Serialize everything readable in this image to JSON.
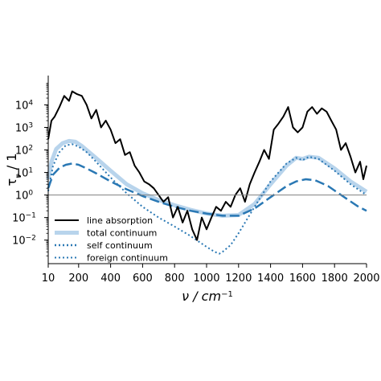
{
  "chart_data": {
    "type": "line",
    "title": "",
    "xlabel": "ν / cm",
    "xlabel_sup": "−1",
    "ylabel": "τ",
    "ylabel_sub": "ν",
    "ylabel_suffix": " / 1",
    "y_scale": "log",
    "xlim": [
      10,
      2000
    ],
    "ylim": [
      0.0009,
      200000
    ],
    "x_ticks": [
      10,
      200,
      400,
      600,
      800,
      1000,
      1200,
      1400,
      1600,
      1800,
      2000
    ],
    "y_ticks": [
      {
        "value": 0.01,
        "label": "10",
        "exp": "−2"
      },
      {
        "value": 0.1,
        "label": "10",
        "exp": "−1"
      },
      {
        "value": 1,
        "label": "10",
        "exp": "0"
      },
      {
        "value": 10,
        "label": "10",
        "exp": "1"
      },
      {
        "value": 100,
        "label": "10",
        "exp": "2"
      },
      {
        "value": 1000,
        "label": "10",
        "exp": "3"
      },
      {
        "value": 10000,
        "label": "10",
        "exp": "4"
      }
    ],
    "reference_line": {
      "y": 1,
      "color": "#808080"
    },
    "legend_position": "lower-left",
    "grid": false,
    "series": [
      {
        "name": "line absorption",
        "color": "#000000",
        "style": "solid",
        "x": [
          10,
          30,
          50,
          80,
          110,
          140,
          160,
          190,
          220,
          250,
          280,
          310,
          340,
          370,
          400,
          430,
          460,
          490,
          520,
          550,
          580,
          610,
          640,
          670,
          700,
          730,
          760,
          790,
          820,
          850,
          880,
          910,
          940,
          970,
          1000,
          1030,
          1060,
          1090,
          1120,
          1150,
          1180,
          1210,
          1240,
          1270,
          1300,
          1330,
          1360,
          1390,
          1420,
          1450,
          1480,
          1510,
          1540,
          1570,
          1600,
          1630,
          1660,
          1690,
          1720,
          1750,
          1780,
          1810,
          1840,
          1870,
          1900,
          1930,
          1960,
          1980,
          2000
        ],
        "y": [
          300,
          2000,
          3000,
          8000,
          25000,
          15000,
          40000,
          30000,
          25000,
          10000,
          2500,
          6000,
          1000,
          2000,
          800,
          200,
          300,
          60,
          80,
          20,
          10,
          4,
          3,
          2,
          1,
          0.5,
          0.8,
          0.1,
          0.3,
          0.06,
          0.2,
          0.03,
          0.01,
          0.1,
          0.03,
          0.1,
          0.3,
          0.2,
          0.5,
          0.3,
          1,
          2,
          0.5,
          3,
          10,
          30,
          100,
          40,
          800,
          1500,
          3000,
          8000,
          1000,
          600,
          1000,
          5000,
          8000,
          4000,
          7000,
          5000,
          2000,
          800,
          100,
          200,
          50,
          10,
          30,
          5,
          20
        ]
      },
      {
        "name": "total continuum",
        "color": "#b8d4ec",
        "style": "thick",
        "x": [
          10,
          30,
          60,
          100,
          140,
          180,
          220,
          300,
          400,
          500,
          600,
          700,
          800,
          900,
          1000,
          1100,
          1200,
          1300,
          1400,
          1500,
          1560,
          1600,
          1640,
          1700,
          1800,
          1900,
          2000
        ],
        "y": [
          5,
          30,
          110,
          200,
          250,
          230,
          150,
          50,
          12,
          3,
          1.2,
          0.6,
          0.35,
          0.22,
          0.15,
          0.12,
          0.13,
          0.4,
          3,
          20,
          45,
          40,
          50,
          45,
          15,
          4,
          1.4
        ]
      },
      {
        "name": "self continuum",
        "color": "#2a78b4",
        "style": "dashed",
        "x": [
          10,
          40,
          80,
          120,
          160,
          200,
          250,
          300,
          400,
          500,
          600,
          700,
          800,
          900,
          1000,
          1100,
          1200,
          1300,
          1400,
          1500,
          1560,
          1620,
          1680,
          1760,
          1850,
          1950,
          2000
        ],
        "y": [
          2,
          8,
          16,
          22,
          25,
          22,
          15,
          10,
          4,
          1.8,
          0.9,
          0.5,
          0.3,
          0.2,
          0.15,
          0.12,
          0.12,
          0.25,
          0.8,
          2.5,
          4,
          5,
          4.5,
          2.5,
          0.9,
          0.3,
          0.2
        ]
      },
      {
        "name": "foreign continuum",
        "color": "#2a78b4",
        "style": "dotted",
        "x": [
          10,
          40,
          80,
          120,
          160,
          200,
          250,
          300,
          400,
          500,
          600,
          700,
          800,
          900,
          1000,
          1050,
          1080,
          1100,
          1150,
          1200,
          1300,
          1400,
          1500,
          1560,
          1600,
          1640,
          1700,
          1800,
          1900,
          2000
        ],
        "y": [
          1.5,
          20,
          80,
          160,
          180,
          140,
          80,
          35,
          6,
          1.2,
          0.3,
          0.1,
          0.04,
          0.015,
          0.005,
          0.003,
          0.0025,
          0.003,
          0.006,
          0.02,
          0.3,
          4,
          25,
          45,
          35,
          50,
          40,
          12,
          3,
          1
        ]
      }
    ]
  }
}
